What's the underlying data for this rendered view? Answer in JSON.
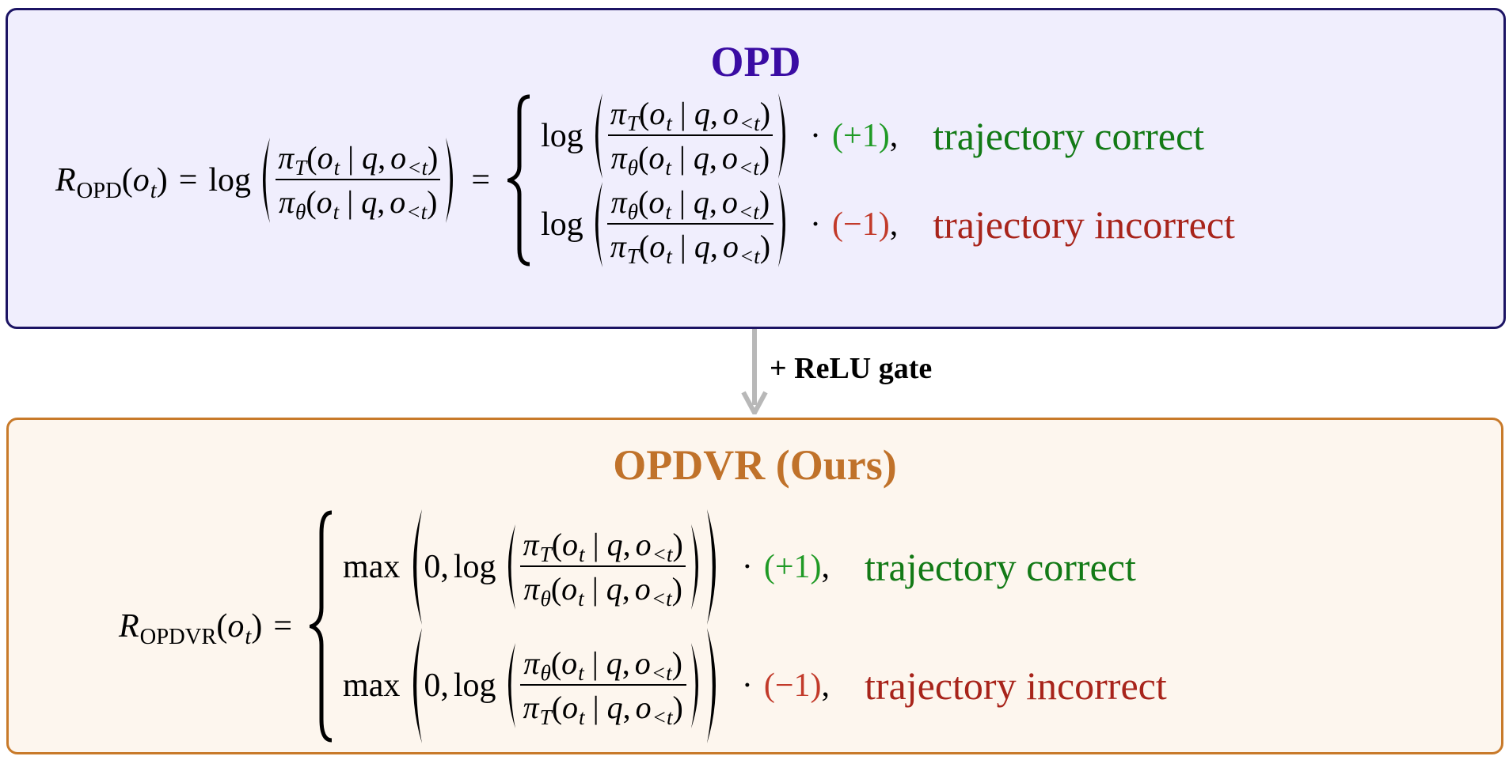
{
  "symbols": {
    "teacher": {
      "base": "π",
      "sub": "T"
    },
    "student": {
      "base": "π",
      "sub": "θ"
    },
    "token": {
      "base": "o",
      "sub": "t"
    },
    "prefix": {
      "base": "o",
      "sub": "<t"
    },
    "query": "q",
    "given": "|",
    "open": "(",
    "close": ")",
    "comma": ",",
    "log": "log",
    "max": "max",
    "zero": "0",
    "equals": "=",
    "times": "·"
  },
  "opd": {
    "title": "OPD",
    "reward": {
      "base": "R",
      "sub": "OPD"
    },
    "cases": [
      {
        "sign": "(+1)",
        "label": "trajectory correct"
      },
      {
        "sign": "(−1)",
        "label": "trajectory incorrect"
      }
    ]
  },
  "gate": "+ ReLU gate",
  "opdvr": {
    "title": "OPDVR (Ours)",
    "reward": {
      "base": "R",
      "sub": "OPDVR"
    },
    "cases": [
      {
        "sign": "(+1)",
        "label": "trajectory correct"
      },
      {
        "sign": "(−1)",
        "label": "trajectory incorrect"
      }
    ]
  }
}
